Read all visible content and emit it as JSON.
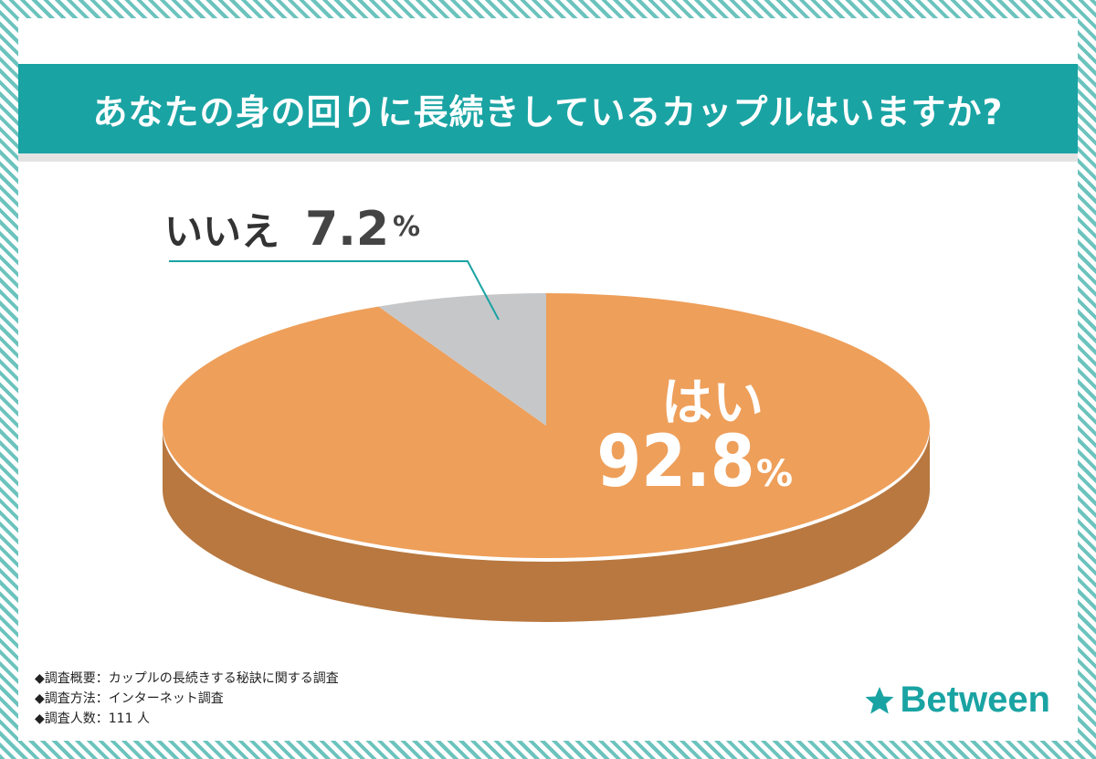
{
  "title": "あなたの身の回りに長続きしているカップルはいますか?",
  "chart_data": {
    "type": "pie",
    "title": "あなたの身の回りに長続きしているカップルはいますか?",
    "slices": [
      {
        "label": "はい",
        "value": 92.8,
        "value_text": "92.8",
        "unit": "%",
        "color": "#ee9f5a",
        "side_color": "#b87840"
      },
      {
        "label": "いいえ",
        "value": 7.2,
        "value_text": "7.2",
        "unit": "%",
        "color": "#c6c7c9",
        "side_color": "#9a9b9d"
      }
    ],
    "style": "3d-ellipse"
  },
  "notes": [
    "◆調査概要：カップルの長続きする秘訣に関する調査",
    "◆調査方法：インターネット調査",
    "◆調査人数：111 人"
  ],
  "brand": {
    "name": "Between",
    "icon": "star-icon",
    "color": "#1aa3a3"
  },
  "colors": {
    "accent": "#1aa3a3",
    "border_stripe": "#6cc3bd"
  }
}
